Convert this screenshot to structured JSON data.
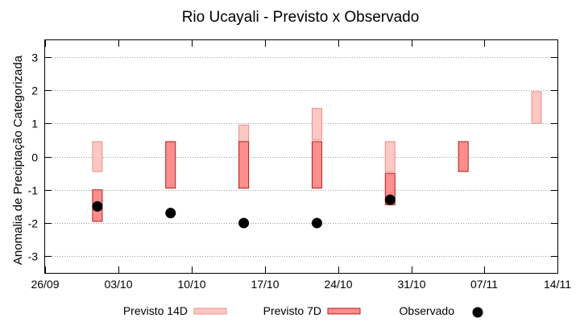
{
  "chart_data": {
    "type": "bar",
    "title": "Rio Ucayali - Previsto x Observado",
    "xlabel": "",
    "ylabel": "Anomalia de Preciptação Categorizada",
    "x_ticks": [
      "26/09",
      "03/10",
      "10/10",
      "17/10",
      "24/10",
      "31/10",
      "07/11",
      "14/11"
    ],
    "ylim": [
      -3.5,
      3.5
    ],
    "y_ticks": [
      -3,
      -2,
      -1,
      0,
      1,
      2,
      3
    ],
    "grid": true,
    "legend_position": "bottom",
    "series": [
      {
        "name": "Previsto 14D",
        "kind": "floating-bar",
        "color_fill": "#fcc8c3",
        "color_edge": "#f08c88",
        "points": [
          {
            "x": "01/10",
            "low": -0.45,
            "high": 0.45
          },
          {
            "x": "15/10",
            "low": -0.95,
            "high": 0.95
          },
          {
            "x": "22/10",
            "low": 0.5,
            "high": 1.45
          },
          {
            "x": "29/10",
            "low": -0.45,
            "high": 0.45
          },
          {
            "x": "12/11",
            "low": 1.0,
            "high": 1.95
          }
        ]
      },
      {
        "name": "Previsto 7D",
        "kind": "floating-bar",
        "color_fill": "#ff8e8e",
        "color_edge": "#b51c1c",
        "points": [
          {
            "x": "01/10",
            "low": -1.95,
            "high": -1.0
          },
          {
            "x": "08/10",
            "low": -0.95,
            "high": 0.45
          },
          {
            "x": "15/10",
            "low": -0.95,
            "high": 0.45
          },
          {
            "x": "22/10",
            "low": -0.95,
            "high": 0.45
          },
          {
            "x": "29/10",
            "low": -1.45,
            "high": -0.5
          },
          {
            "x": "05/11",
            "low": -0.45,
            "high": 0.45
          }
        ]
      },
      {
        "name": "Observado",
        "kind": "scatter",
        "color_fill": "#000000",
        "points": [
          {
            "x": "01/10",
            "y": -1.5
          },
          {
            "x": "08/10",
            "y": -1.7
          },
          {
            "x": "15/10",
            "y": -2.0
          },
          {
            "x": "22/10",
            "y": -2.0
          },
          {
            "x": "29/10",
            "y": -1.3
          }
        ]
      }
    ]
  }
}
